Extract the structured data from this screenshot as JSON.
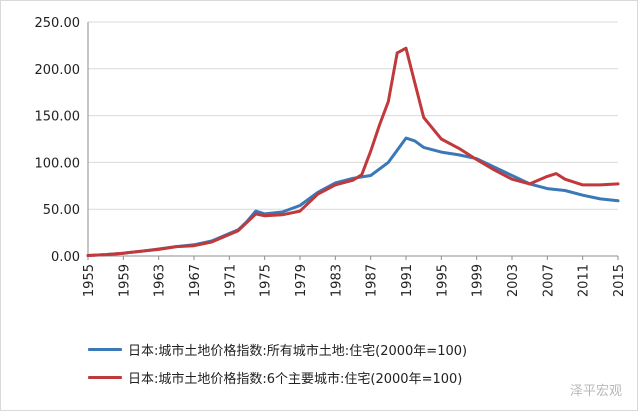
{
  "chart_data": {
    "type": "line",
    "title": "",
    "xlabel": "",
    "ylabel": "",
    "ylim": [
      0,
      250
    ],
    "xlim": [
      1955,
      2015
    ],
    "yticks": [
      "0.00",
      "50.00",
      "100.00",
      "150.00",
      "200.00",
      "250.00"
    ],
    "xticks": [
      "1955",
      "1959",
      "1963",
      "1967",
      "1971",
      "1975",
      "1979",
      "1983",
      "1987",
      "1991",
      "1995",
      "1999",
      "2003",
      "2007",
      "2011",
      "2015"
    ],
    "grid": "horizontal",
    "legend_position": "bottom",
    "series": [
      {
        "name": "日本:城市土地价格指数:所有城市土地:住宅(2000年=100)",
        "color": "#3a78b8",
        "x": [
          1955,
          1957,
          1959,
          1961,
          1963,
          1965,
          1967,
          1969,
          1971,
          1972,
          1973,
          1974,
          1975,
          1977,
          1979,
          1981,
          1983,
          1985,
          1987,
          1989,
          1990,
          1991,
          1992,
          1993,
          1995,
          1997,
          1999,
          2001,
          2003,
          2005,
          2007,
          2009,
          2011,
          2013,
          2015
        ],
        "values": [
          0.5,
          1.5,
          3,
          5,
          7.5,
          10,
          12,
          16,
          24,
          28,
          37,
          48,
          45,
          47,
          54,
          68,
          78,
          83,
          86,
          100,
          113,
          126,
          123,
          116,
          111,
          108,
          104,
          95,
          86,
          77,
          72,
          70,
          65,
          61,
          59
        ]
      },
      {
        "name": "日本:城市土地价格指数:6个主要城市:住宅(2000年=100)",
        "color": "#c0393b",
        "x": [
          1955,
          1957,
          1959,
          1961,
          1963,
          1965,
          1967,
          1969,
          1971,
          1972,
          1973,
          1974,
          1975,
          1977,
          1979,
          1981,
          1983,
          1985,
          1986,
          1987,
          1988,
          1989,
          1990,
          1991,
          1992,
          1993,
          1995,
          1997,
          1999,
          2001,
          2003,
          2005,
          2007,
          2008,
          2009,
          2011,
          2013,
          2015
        ],
        "values": [
          0.5,
          1.5,
          3,
          5,
          7,
          10,
          11,
          15,
          23,
          27,
          36,
          45,
          43,
          44,
          48,
          66,
          76,
          81,
          87,
          112,
          140,
          165,
          217,
          222,
          185,
          148,
          125,
          115,
          103,
          92,
          82,
          77,
          85,
          88,
          82,
          76,
          76,
          77
        ]
      }
    ]
  },
  "legend": {
    "items": [
      {
        "label": "日本:城市土地价格指数:所有城市土地:住宅(2000年=100)",
        "color": "#3a78b8"
      },
      {
        "label": "日本:城市土地价格指数:6个主要城市:住宅(2000年=100)",
        "color": "#c0393b"
      }
    ]
  },
  "watermark": "泽平宏观"
}
